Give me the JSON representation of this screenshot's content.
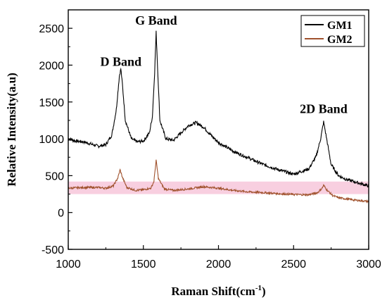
{
  "chart_data": {
    "type": "line",
    "xlabel": "Raman Shift(cm",
    "xlabel_sup": "-1",
    "xlabel_close": ")",
    "ylabel": "Relative Intensity(a.u)",
    "xlim": [
      1000,
      3000
    ],
    "ylim": [
      -500,
      2750
    ],
    "x_ticks": [
      1000,
      1500,
      2000,
      2500,
      3000
    ],
    "y_ticks": [
      -500,
      0,
      500,
      1000,
      1500,
      2000,
      2500
    ],
    "grid": false,
    "legend_position": "top-right",
    "annotations": [
      {
        "text": "D Band",
        "x": 1350,
        "y": 1990
      },
      {
        "text": "G Band",
        "x": 1585,
        "y": 2550
      },
      {
        "text": "2D Band",
        "x": 2700,
        "y": 1350
      }
    ],
    "series": [
      {
        "name": "GM1",
        "color": "#000000",
        "x": [
          1000,
          1050,
          1100,
          1150,
          1200,
          1250,
          1290,
          1320,
          1340,
          1350,
          1360,
          1380,
          1420,
          1460,
          1500,
          1540,
          1560,
          1575,
          1585,
          1595,
          1610,
          1650,
          1700,
          1750,
          1800,
          1850,
          1900,
          1950,
          2000,
          2100,
          2200,
          2300,
          2400,
          2500,
          2600,
          2650,
          2680,
          2700,
          2720,
          2750,
          2800,
          2850,
          2900,
          2950,
          3000
        ],
        "y": [
          1000,
          970,
          960,
          930,
          900,
          920,
          1050,
          1400,
          1850,
          1950,
          1750,
          1250,
          1000,
          960,
          970,
          1080,
          1300,
          1900,
          2450,
          1950,
          1250,
          1000,
          980,
          1080,
          1180,
          1220,
          1160,
          1050,
          950,
          830,
          740,
          650,
          580,
          520,
          590,
          760,
          1000,
          1230,
          1000,
          650,
          500,
          450,
          420,
          390,
          360
        ]
      },
      {
        "name": "GM2",
        "color": "#a0522d",
        "x": [
          1000,
          1100,
          1200,
          1250,
          1300,
          1330,
          1345,
          1360,
          1390,
          1450,
          1500,
          1550,
          1570,
          1585,
          1600,
          1640,
          1700,
          1800,
          1900,
          2000,
          2100,
          2200,
          2300,
          2400,
          2500,
          2600,
          2660,
          2690,
          2700,
          2720,
          2760,
          2800,
          2900,
          3000
        ],
        "y": [
          330,
          340,
          340,
          330,
          360,
          470,
          580,
          480,
          340,
          300,
          310,
          330,
          420,
          710,
          460,
          320,
          300,
          320,
          350,
          330,
          300,
          280,
          270,
          255,
          245,
          240,
          270,
          330,
          370,
          310,
          230,
          200,
          170,
          150
        ]
      }
    ]
  },
  "band": {
    "color": "#f2a7c7"
  }
}
